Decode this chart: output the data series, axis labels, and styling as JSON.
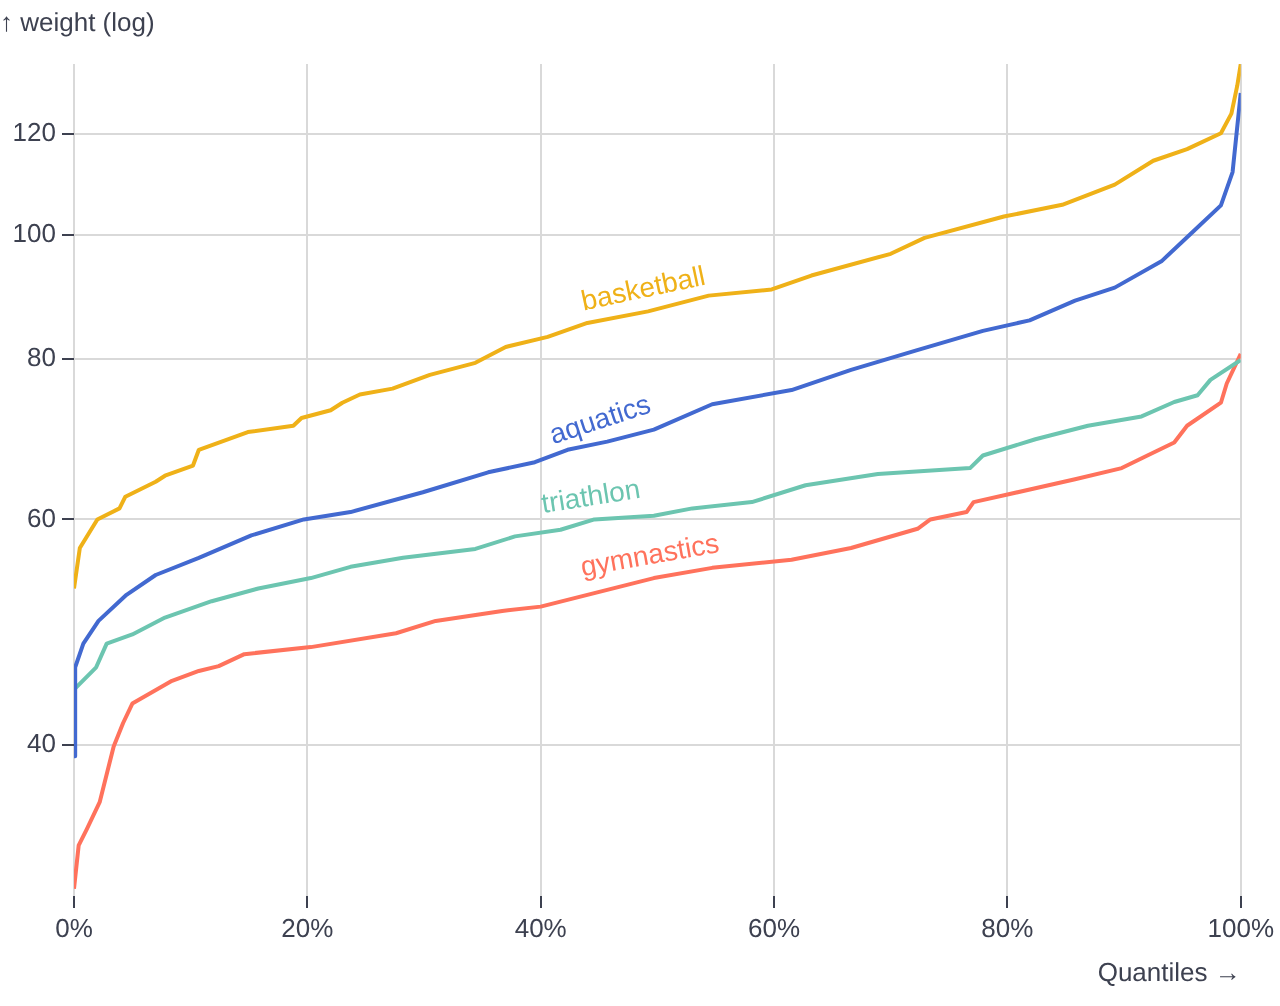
{
  "chart_data": {
    "type": "line",
    "ylabel": "↑ weight (log)",
    "xlabel": "Quantiles →",
    "log": "y",
    "grid": true,
    "legend": false,
    "marker": "none",
    "line_style": "solid",
    "xlim": [
      0,
      100
    ],
    "xticks": [
      {
        "value": 0,
        "label": "0%"
      },
      {
        "value": 20,
        "label": "20%"
      },
      {
        "value": 40,
        "label": "40%"
      },
      {
        "value": 60,
        "label": "60%"
      },
      {
        "value": 80,
        "label": "80%"
      },
      {
        "value": 100,
        "label": "100%"
      }
    ],
    "ylim": [
      30.5,
      136
    ],
    "yticks": [
      40,
      60,
      80,
      100,
      120
    ],
    "series": [
      {
        "name": "basketball",
        "color": "#efb118",
        "x": [
          0,
          0.5,
          2,
          3.9,
          4.4,
          7,
          7.8,
          10.2,
          10.7,
          14.9,
          18.8,
          19.5,
          22,
          23,
          24.5,
          27.3,
          30.5,
          34.4,
          37,
          40.6,
          44,
          49.2,
          54.4,
          59.8,
          63.2,
          70,
          72.9,
          79.7,
          84.7,
          89.2,
          92.5,
          95.4,
          98.3,
          99.2,
          99.7,
          100
        ],
        "values": [
          53,
          57,
          60,
          61.2,
          62.5,
          64.2,
          64.9,
          66.1,
          68,
          70.2,
          71,
          72,
          73,
          74,
          75.1,
          75.9,
          77.8,
          79.5,
          81.8,
          83.3,
          85.4,
          87.2,
          89.7,
          90.7,
          93,
          96.7,
          99.5,
          103.4,
          105.6,
          109.5,
          114.3,
          116.7,
          120.1,
          124.4,
          130.8,
          136
        ]
      },
      {
        "name": "aquatics",
        "color": "#4269d0",
        "x": [
          0,
          0.1,
          0.8,
          2.1,
          4.5,
          7,
          10.7,
          15.2,
          19.7,
          23.7,
          29.9,
          35.5,
          39.5,
          42.3,
          45.7,
          49.7,
          54.7,
          61.5,
          66.6,
          72.2,
          77.9,
          81.9,
          85.8,
          89.2,
          93.2,
          95.9,
          98.3,
          99.3,
          100
        ],
        "values": [
          39.2,
          46,
          48,
          50,
          52.4,
          54.3,
          56,
          58.3,
          60,
          60.8,
          63,
          65.3,
          66.5,
          68,
          69,
          70.5,
          73.8,
          75.7,
          78.5,
          81.3,
          84.2,
          85.8,
          88.9,
          91,
          95.4,
          100.6,
          105.5,
          112,
          129.1
        ]
      },
      {
        "name": "triathlon",
        "color": "#6cc5b0",
        "x": [
          0,
          1.9,
          2.8,
          5,
          7.8,
          11.8,
          15.8,
          20.3,
          23.7,
          28.2,
          34.4,
          37.8,
          41.7,
          44.6,
          49.7,
          53,
          58.1,
          62.7,
          68.9,
          76.8,
          77.9,
          82.4,
          86.9,
          91.5,
          94.3,
          96.3,
          97.4,
          100
        ],
        "values": [
          44.2,
          46,
          48,
          48.8,
          50.3,
          51.8,
          53,
          54,
          55.1,
          56,
          56.9,
          58.2,
          58.9,
          60,
          60.4,
          61.2,
          61.9,
          63.8,
          65.1,
          65.8,
          67.3,
          69.3,
          71,
          72.2,
          74.1,
          75,
          77.1,
          79.9
        ]
      },
      {
        "name": "gymnastics",
        "color": "#ff725c",
        "x": [
          0,
          0.4,
          1.1,
          2.2,
          3.4,
          4.2,
          5,
          8.4,
          10.7,
          12.4,
          14.6,
          20.3,
          27.6,
          31,
          36.7,
          40,
          49.7,
          54.7,
          61.5,
          66.6,
          72.3,
          73.4,
          76.5,
          77.1,
          80.2,
          85.8,
          89.8,
          92,
          94.3,
          95.4,
          98.3,
          98.8,
          100
        ],
        "values": [
          30.9,
          33.4,
          34.4,
          36.1,
          39.9,
          41.6,
          43.1,
          44.9,
          45.7,
          46.1,
          47.1,
          47.7,
          48.9,
          50,
          50.9,
          51.3,
          54,
          55,
          55.8,
          57,
          59,
          60,
          60.8,
          61.9,
          62.8,
          64.5,
          65.8,
          67.3,
          68.9,
          71,
          74,
          76.6,
          80.8
        ]
      }
    ]
  }
}
